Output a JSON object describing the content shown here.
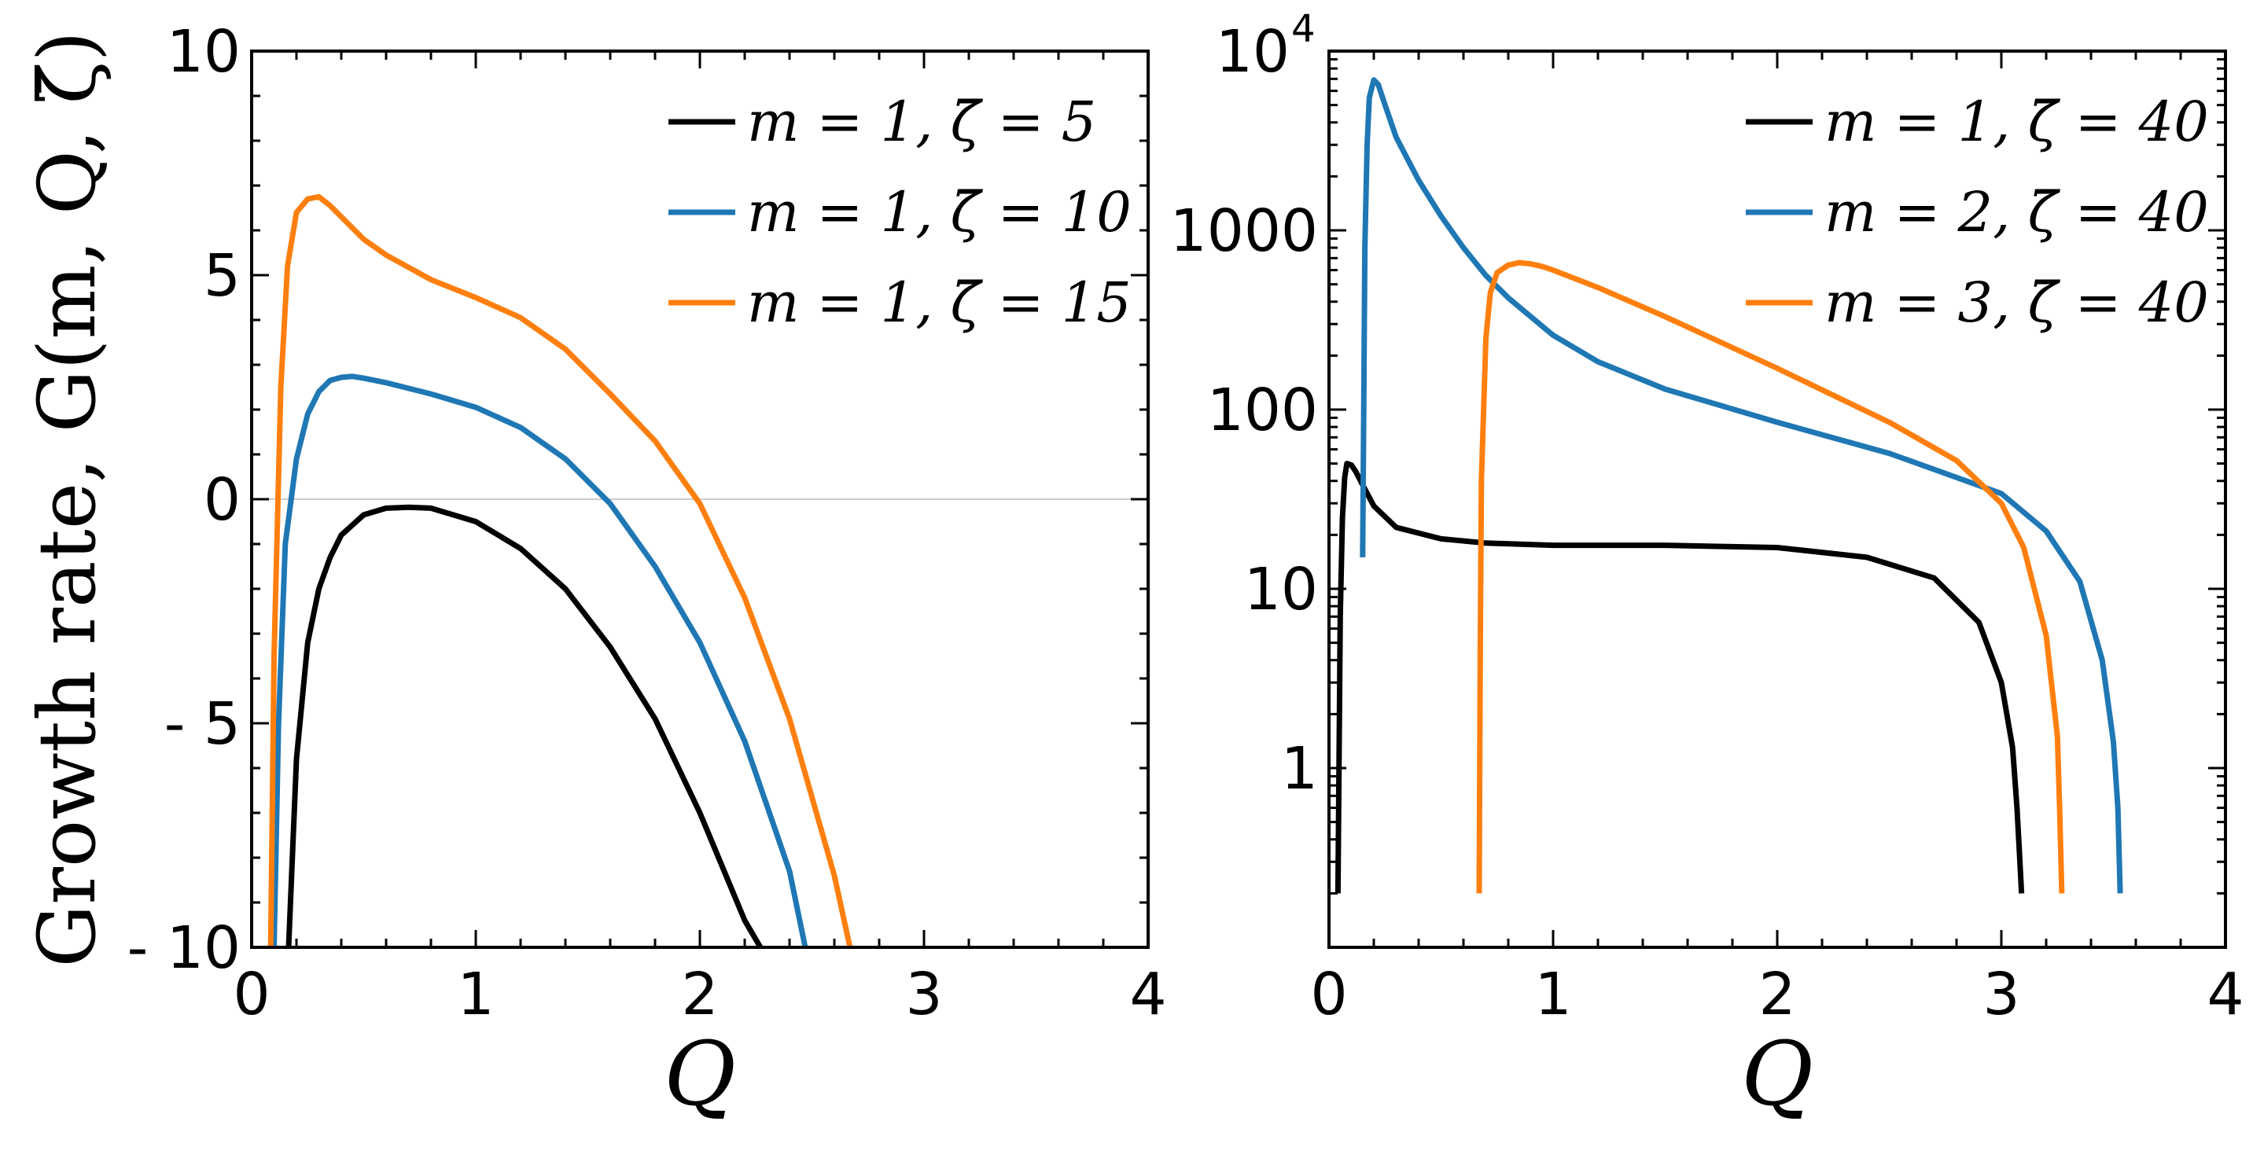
{
  "colors": {
    "black": "#000000",
    "blue": "#1f77b4",
    "orange": "#ff7f0e",
    "zero_line": "#bbbbbb"
  },
  "chart_data": [
    {
      "type": "line",
      "xlabel": "Q",
      "ylabel": "Growth rate, G(m, Q, ζ̄)",
      "xlim": [
        0,
        4
      ],
      "ylim": [
        -10,
        10
      ],
      "xticks": [
        "0",
        "1",
        "2",
        "3",
        "4"
      ],
      "yticks": [
        "10",
        "5",
        "0",
        "- 5",
        "- 10"
      ],
      "ytick_values": [
        10,
        5,
        0,
        -5,
        -10
      ],
      "zero_line": true,
      "legend_position": "top-right",
      "series": [
        {
          "name": "m = 1, ζ̄ = 5",
          "color": "#000000",
          "x": [
            0.165,
            0.2,
            0.25,
            0.3,
            0.35,
            0.4,
            0.5,
            0.6,
            0.7,
            0.8,
            1.0,
            1.2,
            1.4,
            1.6,
            1.8,
            2.0,
            2.1,
            2.2,
            2.27
          ],
          "y": [
            -10,
            -5.8,
            -3.2,
            -2.0,
            -1.3,
            -0.8,
            -0.35,
            -0.2,
            -0.18,
            -0.2,
            -0.5,
            -1.1,
            -2.0,
            -3.3,
            -4.9,
            -7.0,
            -8.2,
            -9.4,
            -10
          ]
        },
        {
          "name": "m = 1, ζ̄ = 10",
          "color": "#1f77b4",
          "x": [
            0.1,
            0.12,
            0.15,
            0.2,
            0.25,
            0.3,
            0.35,
            0.4,
            0.45,
            0.5,
            0.6,
            0.8,
            1.0,
            1.2,
            1.4,
            1.6,
            1.8,
            2.0,
            2.2,
            2.4,
            2.47
          ],
          "y": [
            -10,
            -5,
            -1.0,
            0.9,
            1.9,
            2.4,
            2.65,
            2.72,
            2.74,
            2.7,
            2.6,
            2.35,
            2.05,
            1.6,
            0.9,
            -0.1,
            -1.5,
            -3.2,
            -5.4,
            -8.3,
            -10
          ]
        },
        {
          "name": "m = 1, ζ̄ = 15",
          "color": "#ff7f0e",
          "x": [
            0.085,
            0.1,
            0.13,
            0.16,
            0.2,
            0.25,
            0.3,
            0.35,
            0.4,
            0.5,
            0.6,
            0.8,
            1.0,
            1.2,
            1.4,
            1.6,
            1.8,
            2.0,
            2.2,
            2.4,
            2.6,
            2.67
          ],
          "y": [
            -10,
            -3.5,
            2.5,
            5.2,
            6.4,
            6.7,
            6.75,
            6.55,
            6.3,
            5.8,
            5.45,
            4.9,
            4.5,
            4.05,
            3.35,
            2.35,
            1.3,
            -0.1,
            -2.2,
            -4.9,
            -8.4,
            -10
          ]
        }
      ]
    },
    {
      "type": "line",
      "xlabel": "Q",
      "ylabel": "",
      "xlim": [
        0,
        4
      ],
      "ylim": [
        0.1,
        10000
      ],
      "y_scale": "log",
      "xticks": [
        "0",
        "1",
        "2",
        "3",
        "4"
      ],
      "yticks": [
        "1",
        "10",
        "100",
        "1000"
      ],
      "ytick_values": [
        1,
        10,
        100,
        1000
      ],
      "ytop_label": {
        "base": "10",
        "exp": "4",
        "value": 10000
      },
      "legend_position": "top-right",
      "series": [
        {
          "name": "m = 1, ζ̄ = 40",
          "color": "#000000",
          "x": [
            0.04,
            0.05,
            0.06,
            0.07,
            0.08,
            0.1,
            0.12,
            0.15,
            0.2,
            0.3,
            0.5,
            0.7,
            1.0,
            1.5,
            2.0,
            2.4,
            2.7,
            2.9,
            3.0,
            3.05,
            3.07,
            3.08,
            3.09
          ],
          "y": [
            0.2,
            7,
            25,
            42,
            50,
            49,
            45,
            38,
            29,
            22,
            19,
            18,
            17.5,
            17.5,
            17,
            15,
            11.5,
            6.5,
            3.0,
            1.3,
            0.6,
            0.35,
            0.2
          ]
        },
        {
          "name": "m = 2, ζ̄ = 40",
          "color": "#1f77b4",
          "x": [
            0.15,
            0.155,
            0.16,
            0.17,
            0.18,
            0.2,
            0.22,
            0.25,
            0.3,
            0.4,
            0.5,
            0.6,
            0.7,
            0.8,
            1.0,
            1.2,
            1.5,
            2.0,
            2.5,
            3.0,
            3.2,
            3.35,
            3.45,
            3.5,
            3.52,
            3.53
          ],
          "y": [
            15,
            100,
            800,
            3000,
            5500,
            6900,
            6500,
            5000,
            3300,
            1900,
            1200,
            800,
            560,
            420,
            260,
            185,
            130,
            85,
            57,
            34,
            21,
            11,
            4.0,
            1.4,
            0.6,
            0.2
          ]
        },
        {
          "name": "m = 3, ζ̄ = 40",
          "color": "#ff7f0e",
          "x": [
            0.67,
            0.675,
            0.68,
            0.7,
            0.72,
            0.75,
            0.8,
            0.85,
            0.9,
            0.95,
            1.0,
            1.2,
            1.5,
            2.0,
            2.5,
            2.8,
            3.0,
            3.1,
            3.2,
            3.25,
            3.26,
            3.27
          ],
          "y": [
            0.2,
            5,
            40,
            250,
            450,
            580,
            640,
            660,
            650,
            630,
            600,
            480,
            330,
            170,
            85,
            52,
            30,
            17,
            5.5,
            1.5,
            0.6,
            0.2
          ]
        }
      ]
    }
  ]
}
